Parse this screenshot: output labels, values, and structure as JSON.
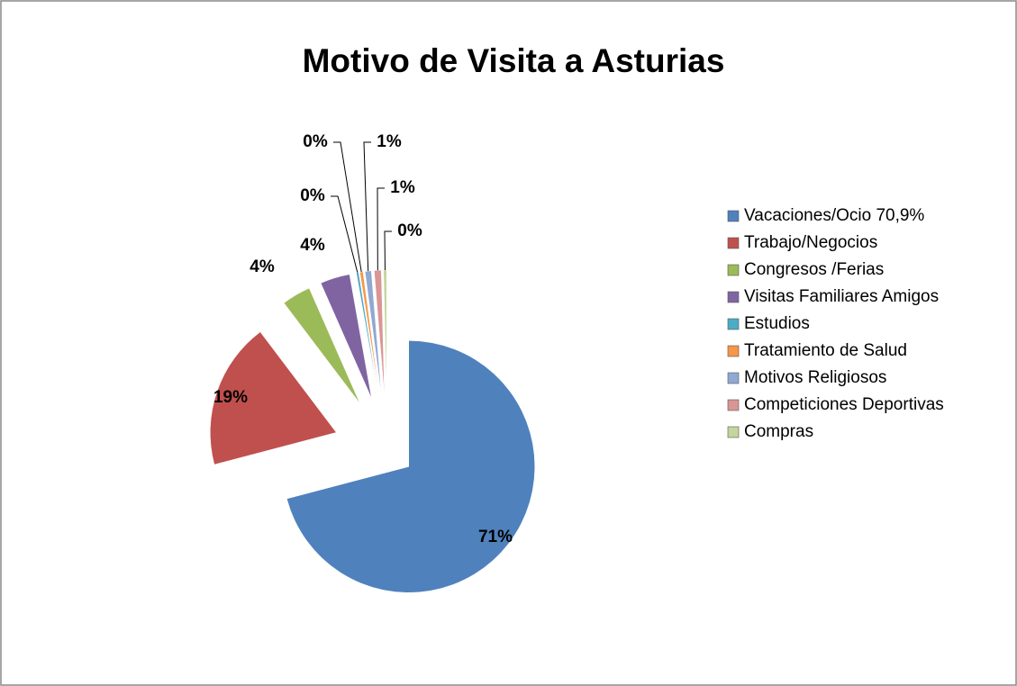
{
  "chart_data": {
    "type": "pie",
    "title": "Motivo de Visita a Asturias",
    "categories": [
      "Vacaciones/Ocio 70,9%",
      "Trabajo/Negocios",
      "Congresos /Ferias",
      "Visitas Familiares Amigos",
      "Estudios",
      "Tratamiento de Salud",
      "Motivos Religiosos",
      "Competiciones Deportivas",
      "Compras"
    ],
    "values": [
      70.9,
      18.8,
      3.7,
      3.8,
      0.3,
      0.4,
      0.8,
      0.9,
      0.4
    ],
    "value_labels": [
      "71%",
      "19%",
      "4%",
      "4%",
      "0%",
      "0%",
      "1%",
      "1%",
      "0%"
    ],
    "colors": [
      "#4f81bd",
      "#c0504d",
      "#9bbb59",
      "#8064a2",
      "#4bacc6",
      "#f79646",
      "#8fa9d3",
      "#d99694",
      "#c3d69b"
    ],
    "legend": "right"
  }
}
